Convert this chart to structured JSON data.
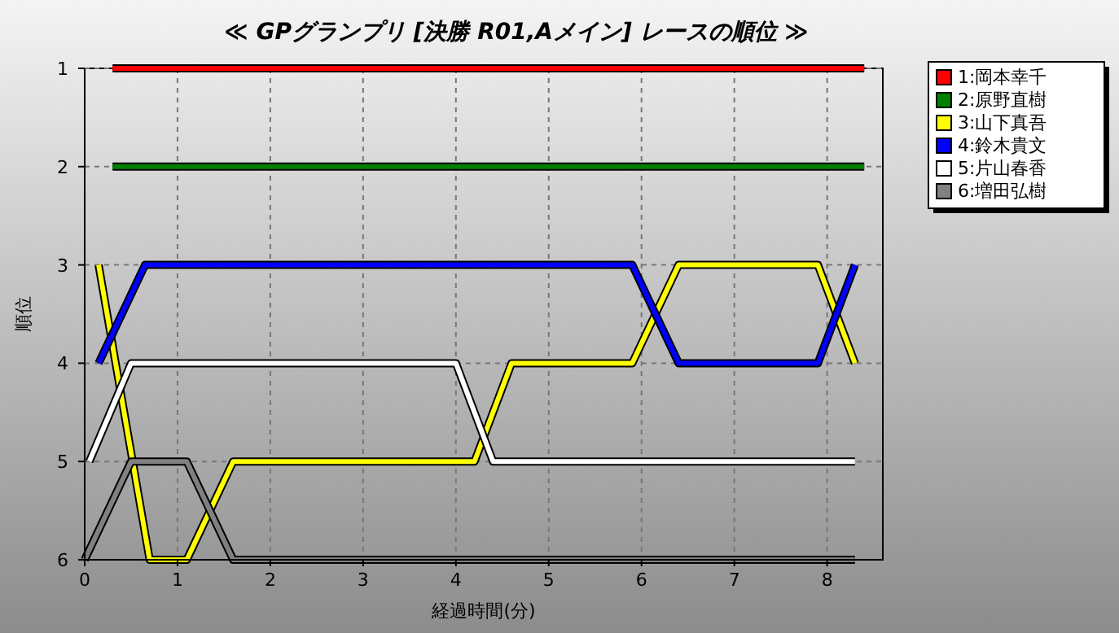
{
  "chart_data": {
    "type": "line",
    "title": "≪ GPグランプリ [決勝 R01,Aメイン] レースの順位 ≫",
    "xlabel": "経過時間(分)",
    "ylabel": "順位",
    "xlim": [
      0,
      8.6
    ],
    "xticks": [
      0,
      1,
      2,
      3,
      4,
      5,
      6,
      7,
      8
    ],
    "ylim": [
      6,
      1
    ],
    "yticks": [
      1,
      2,
      3,
      4,
      5,
      6
    ],
    "grid": true,
    "legend": "top right",
    "marker": "none",
    "line_style": "solid",
    "series": [
      {
        "name": "1:岡本幸千",
        "color": "#ff0000",
        "x": [
          0.3,
          8.4
        ],
        "values": [
          1,
          1
        ]
      },
      {
        "name": "2:原野直樹",
        "color": "#008000",
        "x": [
          0.3,
          8.4
        ],
        "values": [
          2,
          2
        ]
      },
      {
        "name": "3:山下真吾",
        "color": "#ffff00",
        "x": [
          0.15,
          0.7,
          1.1,
          1.6,
          4.2,
          4.6,
          5.9,
          6.4,
          7.9,
          8.3
        ],
        "values": [
          3,
          6,
          6,
          5,
          5,
          4,
          4,
          3,
          3,
          4
        ]
      },
      {
        "name": "4:鈴木貴文",
        "color": "#0000ff",
        "x": [
          0.15,
          0.65,
          5.9,
          6.4,
          7.9,
          8.3
        ],
        "values": [
          4,
          3,
          3,
          4,
          4,
          3
        ]
      },
      {
        "name": "5:片山春香",
        "color": "#ffffff",
        "x": [
          0.05,
          0.5,
          4.0,
          4.4,
          8.3
        ],
        "values": [
          5,
          4,
          4,
          5,
          5
        ]
      },
      {
        "name": "6:増田弘樹",
        "color": "#808080",
        "x": [
          0,
          0.5,
          1.1,
          1.6,
          8.3
        ],
        "values": [
          6,
          5,
          5,
          6,
          6
        ]
      }
    ]
  }
}
